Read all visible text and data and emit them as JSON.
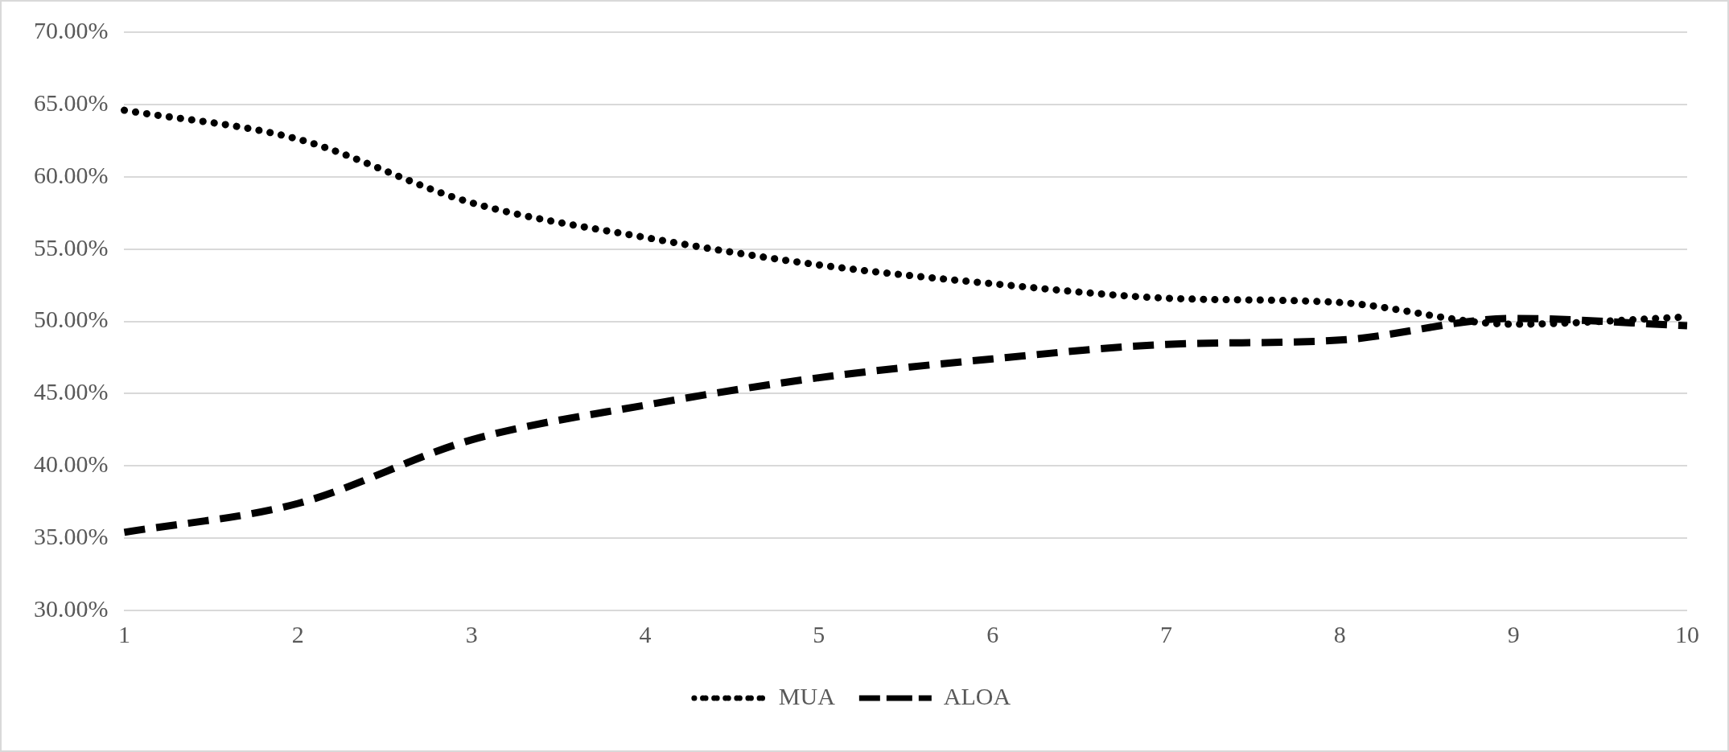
{
  "chart_data": {
    "type": "line",
    "categories": [
      "1",
      "2",
      "3",
      "4",
      "5",
      "6",
      "7",
      "8",
      "9",
      "10"
    ],
    "series": [
      {
        "name": "MUA",
        "color": "#000000",
        "line_style": "dotted",
        "values": [
          64.6,
          62.6,
          58.2,
          55.8,
          53.9,
          52.6,
          51.6,
          51.3,
          49.8,
          50.3
        ]
      },
      {
        "name": "ALOA",
        "color": "#000000",
        "line_style": "dashed",
        "values": [
          35.4,
          37.4,
          41.8,
          44.2,
          46.1,
          47.4,
          48.4,
          48.7,
          50.2,
          49.7
        ]
      }
    ],
    "ylim": [
      30,
      70
    ],
    "yticks": [
      {
        "value": 30,
        "label": "30.00%"
      },
      {
        "value": 35,
        "label": "35.00%"
      },
      {
        "value": 40,
        "label": "40.00%"
      },
      {
        "value": 45,
        "label": "45.00%"
      },
      {
        "value": 50,
        "label": "50.00%"
      },
      {
        "value": 55,
        "label": "55.00%"
      },
      {
        "value": 60,
        "label": "60.00%"
      },
      {
        "value": 65,
        "label": "65.00%"
      },
      {
        "value": 70,
        "label": "70.00%"
      }
    ],
    "grid": "y",
    "legend": "bottom",
    "marker": "none"
  }
}
